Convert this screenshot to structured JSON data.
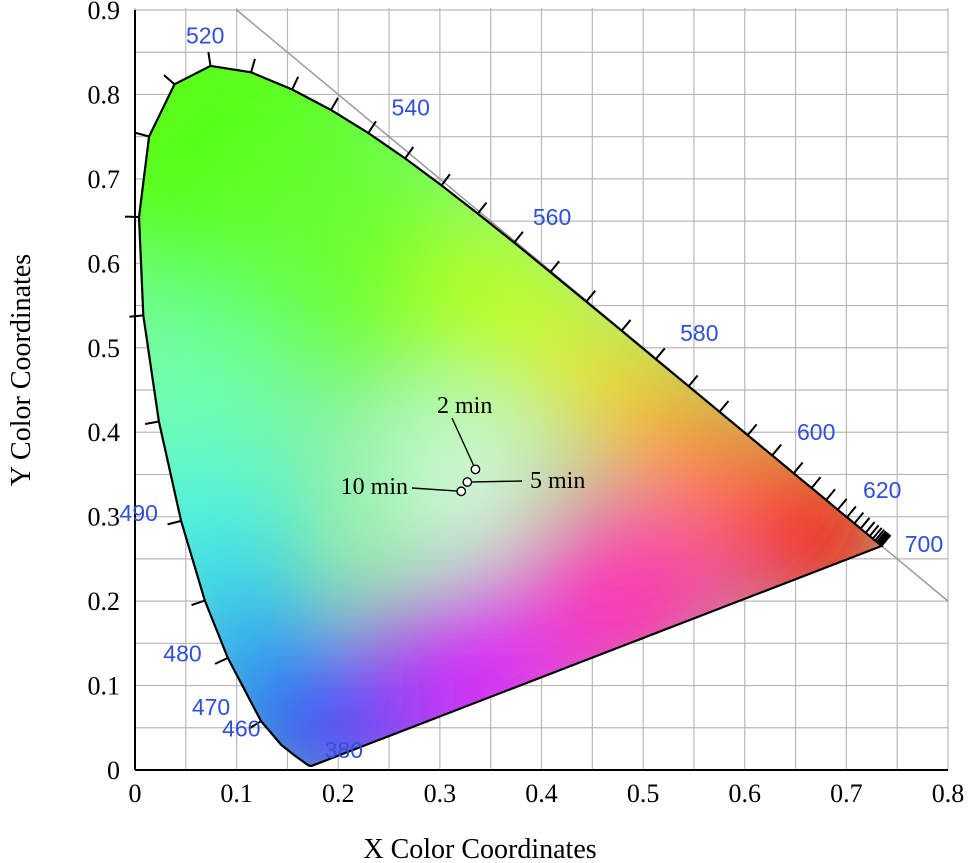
{
  "chart_data": {
    "type": "scatter",
    "title": "",
    "xlabel": "X Color Coordinates",
    "ylabel": "Y Color Coordinates",
    "xlim": [
      0,
      0.8
    ],
    "ylim": [
      0,
      0.9
    ],
    "grid": true,
    "x_ticks": [
      {
        "v": 0,
        "label": "0"
      },
      {
        "v": 0.1,
        "label": "0.1"
      },
      {
        "v": 0.2,
        "label": "0.2"
      },
      {
        "v": 0.3,
        "label": "0.3"
      },
      {
        "v": 0.4,
        "label": "0.4"
      },
      {
        "v": 0.5,
        "label": "0.5"
      },
      {
        "v": 0.6,
        "label": "0.6"
      },
      {
        "v": 0.7,
        "label": "0.7"
      },
      {
        "v": 0.8,
        "label": "0.8"
      }
    ],
    "y_ticks": [
      {
        "v": 0,
        "label": "0"
      },
      {
        "v": 0.1,
        "label": "0.1"
      },
      {
        "v": 0.2,
        "label": "0.2"
      },
      {
        "v": 0.3,
        "label": "0.3"
      },
      {
        "v": 0.4,
        "label": "0.4"
      },
      {
        "v": 0.5,
        "label": "0.5"
      },
      {
        "v": 0.6,
        "label": "0.6"
      },
      {
        "v": 0.7,
        "label": "0.7"
      },
      {
        "v": 0.8,
        "label": "0.8"
      },
      {
        "v": 0.9,
        "label": "0.9"
      }
    ],
    "wavelength_labels": [
      {
        "label": "380",
        "x": 0.174,
        "y": 0.005
      },
      {
        "label": "460",
        "x": 0.144,
        "y": 0.03
      },
      {
        "label": "470",
        "x": 0.124,
        "y": 0.058
      },
      {
        "label": "480",
        "x": 0.091,
        "y": 0.133
      },
      {
        "label": "490",
        "x": 0.045,
        "y": 0.295
      },
      {
        "label": "520",
        "x": 0.074,
        "y": 0.834
      },
      {
        "label": "540",
        "x": 0.23,
        "y": 0.754
      },
      {
        "label": "560",
        "x": 0.373,
        "y": 0.624
      },
      {
        "label": "580",
        "x": 0.512,
        "y": 0.487
      },
      {
        "label": "600",
        "x": 0.627,
        "y": 0.372
      },
      {
        "label": "620",
        "x": 0.692,
        "y": 0.308
      },
      {
        "label": "700",
        "x": 0.735,
        "y": 0.265
      }
    ],
    "points": [
      {
        "name": "2 min",
        "x": 0.335,
        "y": 0.356
      },
      {
        "name": "5 min",
        "x": 0.327,
        "y": 0.341
      },
      {
        "name": "10 min",
        "x": 0.321,
        "y": 0.33
      }
    ]
  }
}
